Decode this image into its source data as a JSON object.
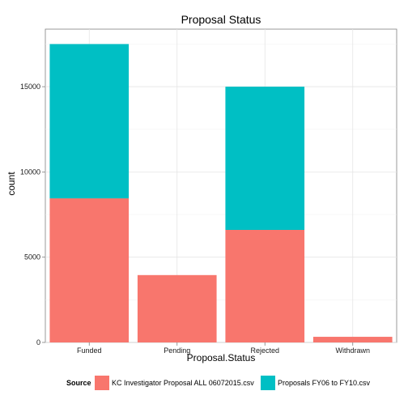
{
  "chart_data": {
    "type": "bar",
    "stacked": true,
    "title": "Proposal Status",
    "xlabel": "Proposal.Status",
    "ylabel": "count",
    "categories": [
      "Funded",
      "Pending",
      "Rejected",
      "Withdrawn"
    ],
    "series": [
      {
        "name": "KC Investigator Proposal ALL 06072015.csv",
        "color": "#F8766D",
        "values": [
          8450,
          3950,
          6600,
          330
        ]
      },
      {
        "name": "Proposals FY06 to FY10.csv",
        "color": "#00BFC4",
        "values": [
          9050,
          0,
          8400,
          0
        ]
      }
    ],
    "ylim": [
      0,
      18375
    ],
    "yticks": [
      0,
      5000,
      10000,
      15000
    ],
    "grid": true,
    "legend": {
      "title": "Source",
      "position": "bottom"
    }
  }
}
